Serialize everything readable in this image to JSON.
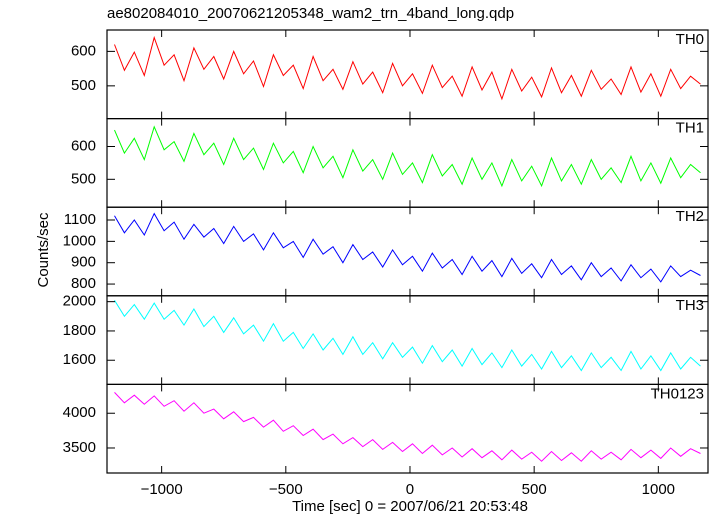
{
  "chart_data": {
    "type": "line",
    "title": "ae802084010_20070621205348_wam2_trn_4band_long.qdp",
    "xlabel": "Time [sec] 0 = 2007/06/21 20:53:48",
    "ylabel": "Counts/sec",
    "xlim": [
      -1220,
      1200
    ],
    "xticks": [
      {
        "value": -1000,
        "label": "−1000"
      },
      {
        "value": -500,
        "label": "−500"
      },
      0,
      500,
      1000
    ],
    "x": [
      -1190,
      -1150,
      -1110,
      -1070,
      -1030,
      -990,
      -950,
      -910,
      -870,
      -830,
      -790,
      -750,
      -710,
      -670,
      -630,
      -590,
      -550,
      -510,
      -470,
      -430,
      -390,
      -350,
      -310,
      -270,
      -230,
      -190,
      -150,
      -110,
      -70,
      -30,
      10,
      50,
      90,
      130,
      170,
      210,
      250,
      290,
      330,
      370,
      410,
      450,
      490,
      530,
      570,
      610,
      650,
      690,
      730,
      770,
      810,
      850,
      890,
      930,
      970,
      1010,
      1050,
      1090,
      1130,
      1170
    ],
    "series": [
      {
        "name": "TH0",
        "color": "#ff0000",
        "ylim": [
          405,
          662
        ],
        "yticks": [
          500,
          600
        ],
        "values": [
          620,
          545,
          598,
          530,
          640,
          560,
          590,
          515,
          610,
          548,
          585,
          520,
          600,
          535,
          572,
          498,
          590,
          530,
          560,
          492,
          585,
          515,
          548,
          490,
          570,
          505,
          540,
          480,
          565,
          500,
          535,
          478,
          560,
          495,
          528,
          470,
          555,
          488,
          540,
          462,
          548,
          485,
          525,
          468,
          552,
          480,
          530,
          470,
          545,
          490,
          520,
          475,
          555,
          482,
          535,
          470,
          548,
          492,
          528,
          505
        ]
      },
      {
        "name": "TH1",
        "color": "#00ff00",
        "ylim": [
          415,
          685
        ],
        "yticks": [
          500,
          600
        ],
        "values": [
          650,
          580,
          625,
          560,
          660,
          590,
          615,
          555,
          640,
          575,
          610,
          545,
          625,
          560,
          595,
          530,
          610,
          550,
          585,
          520,
          600,
          535,
          570,
          505,
          590,
          525,
          560,
          500,
          580,
          515,
          550,
          490,
          575,
          510,
          545,
          485,
          565,
          500,
          550,
          480,
          560,
          495,
          540,
          480,
          565,
          495,
          545,
          485,
          560,
          500,
          535,
          490,
          570,
          495,
          550,
          488,
          565,
          505,
          545,
          520
        ]
      },
      {
        "name": "TH2",
        "color": "#0000ff",
        "ylim": [
          745,
          1160
        ],
        "yticks": [
          800,
          900,
          1000,
          1100
        ],
        "values": [
          1120,
          1040,
          1100,
          1030,
          1130,
          1050,
          1090,
          1010,
          1080,
          1020,
          1060,
          990,
          1070,
          1000,
          1035,
          960,
          1040,
          970,
          1000,
          925,
          1010,
          940,
          975,
          900,
          985,
          915,
          950,
          880,
          960,
          890,
          930,
          860,
          945,
          875,
          915,
          845,
          930,
          860,
          910,
          835,
          920,
          850,
          895,
          830,
          915,
          845,
          885,
          820,
          900,
          835,
          875,
          815,
          890,
          830,
          870,
          810,
          885,
          835,
          865,
          840
        ]
      },
      {
        "name": "TH3",
        "color": "#00ffff",
        "ylim": [
          1435,
          2040
        ],
        "yticks": [
          1600,
          1800,
          2000
        ],
        "values": [
          2010,
          1900,
          1980,
          1880,
          1990,
          1880,
          1940,
          1840,
          1950,
          1830,
          1900,
          1790,
          1890,
          1780,
          1840,
          1730,
          1850,
          1730,
          1790,
          1680,
          1780,
          1670,
          1750,
          1640,
          1760,
          1640,
          1720,
          1610,
          1720,
          1620,
          1690,
          1580,
          1700,
          1590,
          1670,
          1560,
          1680,
          1570,
          1650,
          1550,
          1670,
          1560,
          1640,
          1540,
          1660,
          1550,
          1630,
          1530,
          1650,
          1550,
          1620,
          1530,
          1660,
          1540,
          1630,
          1530,
          1650,
          1540,
          1620,
          1560
        ]
      },
      {
        "name": "TH0123",
        "color": "#ff00ff",
        "ylim": [
          3140,
          4415
        ],
        "yticks": [
          3500,
          4000
        ],
        "values": [
          4300,
          4150,
          4260,
          4130,
          4250,
          4100,
          4180,
          4030,
          4150,
          4000,
          4060,
          3920,
          4020,
          3880,
          3940,
          3800,
          3900,
          3740,
          3820,
          3680,
          3770,
          3620,
          3700,
          3560,
          3650,
          3520,
          3620,
          3480,
          3580,
          3450,
          3560,
          3420,
          3540,
          3400,
          3500,
          3370,
          3490,
          3360,
          3460,
          3330,
          3470,
          3340,
          3440,
          3310,
          3450,
          3320,
          3430,
          3310,
          3460,
          3340,
          3440,
          3330,
          3480,
          3360,
          3470,
          3350,
          3500,
          3380,
          3490,
          3420
        ]
      }
    ]
  }
}
